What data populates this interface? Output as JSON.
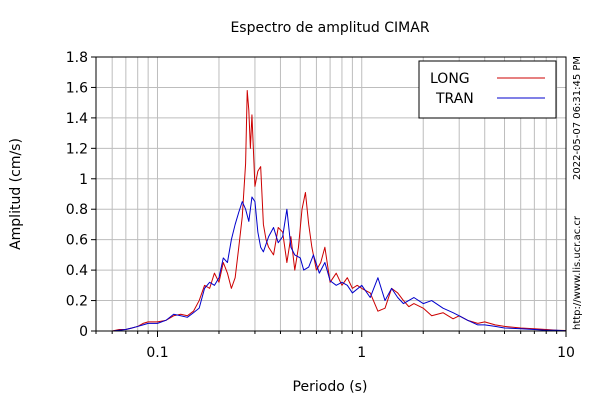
{
  "chart_data": {
    "type": "line",
    "title": "Espectro de amplitud CIMAR",
    "xlabel": "Periodo (s)",
    "ylabel": "Amplitud (cm/s)",
    "xscale": "log",
    "xlim": [
      0.05,
      10
    ],
    "ylim": [
      0,
      1.8
    ],
    "x_ticks": [
      {
        "value": 0.1,
        "label": "0.1"
      },
      {
        "value": 1,
        "label": "1"
      },
      {
        "value": 10,
        "label": "10"
      }
    ],
    "y_ticks": [
      {
        "value": 0,
        "label": "0"
      },
      {
        "value": 0.2,
        "label": "0.2"
      },
      {
        "value": 0.4,
        "label": "0.4"
      },
      {
        "value": 0.6,
        "label": "0.6"
      },
      {
        "value": 0.8,
        "label": "0.8"
      },
      {
        "value": 1,
        "label": "1"
      },
      {
        "value": 1.2,
        "label": "1.2"
      },
      {
        "value": 1.4,
        "label": "1.4"
      },
      {
        "value": 1.6,
        "label": "1.6"
      },
      {
        "value": 1.8,
        "label": "1.8"
      }
    ],
    "grid": true,
    "legend_position": "top-right",
    "side_texts": [
      "2022-05-07 06:31:45 PM",
      "http://www.lis.ucr.ac.cr"
    ],
    "series": [
      {
        "name": "LONG",
        "color": "#cc0000",
        "points": [
          [
            0.06,
            0.0
          ],
          [
            0.065,
            0.01
          ],
          [
            0.07,
            0.01
          ],
          [
            0.075,
            0.02
          ],
          [
            0.08,
            0.03
          ],
          [
            0.085,
            0.05
          ],
          [
            0.09,
            0.06
          ],
          [
            0.1,
            0.06
          ],
          [
            0.11,
            0.07
          ],
          [
            0.12,
            0.1
          ],
          [
            0.13,
            0.11
          ],
          [
            0.14,
            0.1
          ],
          [
            0.15,
            0.13
          ],
          [
            0.16,
            0.2
          ],
          [
            0.17,
            0.3
          ],
          [
            0.18,
            0.28
          ],
          [
            0.19,
            0.38
          ],
          [
            0.2,
            0.32
          ],
          [
            0.21,
            0.45
          ],
          [
            0.22,
            0.38
          ],
          [
            0.23,
            0.28
          ],
          [
            0.24,
            0.35
          ],
          [
            0.25,
            0.55
          ],
          [
            0.26,
            0.75
          ],
          [
            0.27,
            1.1
          ],
          [
            0.275,
            1.58
          ],
          [
            0.28,
            1.45
          ],
          [
            0.285,
            1.2
          ],
          [
            0.29,
            1.42
          ],
          [
            0.3,
            0.95
          ],
          [
            0.31,
            1.05
          ],
          [
            0.32,
            1.08
          ],
          [
            0.33,
            0.7
          ],
          [
            0.34,
            0.6
          ],
          [
            0.35,
            0.55
          ],
          [
            0.37,
            0.5
          ],
          [
            0.39,
            0.68
          ],
          [
            0.41,
            0.65
          ],
          [
            0.43,
            0.45
          ],
          [
            0.45,
            0.62
          ],
          [
            0.47,
            0.4
          ],
          [
            0.49,
            0.55
          ],
          [
            0.51,
            0.8
          ],
          [
            0.53,
            0.91
          ],
          [
            0.55,
            0.7
          ],
          [
            0.57,
            0.55
          ],
          [
            0.6,
            0.4
          ],
          [
            0.63,
            0.45
          ],
          [
            0.66,
            0.55
          ],
          [
            0.7,
            0.32
          ],
          [
            0.75,
            0.38
          ],
          [
            0.8,
            0.3
          ],
          [
            0.85,
            0.35
          ],
          [
            0.9,
            0.28
          ],
          [
            0.95,
            0.3
          ],
          [
            1.0,
            0.28
          ],
          [
            1.1,
            0.25
          ],
          [
            1.2,
            0.13
          ],
          [
            1.3,
            0.15
          ],
          [
            1.4,
            0.28
          ],
          [
            1.5,
            0.25
          ],
          [
            1.6,
            0.2
          ],
          [
            1.7,
            0.16
          ],
          [
            1.8,
            0.18
          ],
          [
            2.0,
            0.15
          ],
          [
            2.2,
            0.1
          ],
          [
            2.5,
            0.12
          ],
          [
            2.8,
            0.08
          ],
          [
            3.0,
            0.1
          ],
          [
            3.3,
            0.07
          ],
          [
            3.7,
            0.05
          ],
          [
            4.0,
            0.06
          ],
          [
            4.5,
            0.04
          ],
          [
            5.0,
            0.03
          ],
          [
            6.0,
            0.02
          ],
          [
            7.0,
            0.015
          ],
          [
            8.0,
            0.01
          ],
          [
            9.0,
            0.005
          ],
          [
            10.0,
            0.003
          ]
        ]
      },
      {
        "name": "TRAN",
        "color": "#0000cc",
        "points": [
          [
            0.06,
            0.0
          ],
          [
            0.065,
            0.005
          ],
          [
            0.07,
            0.01
          ],
          [
            0.075,
            0.02
          ],
          [
            0.08,
            0.03
          ],
          [
            0.085,
            0.04
          ],
          [
            0.09,
            0.05
          ],
          [
            0.1,
            0.05
          ],
          [
            0.11,
            0.07
          ],
          [
            0.12,
            0.11
          ],
          [
            0.13,
            0.1
          ],
          [
            0.14,
            0.09
          ],
          [
            0.15,
            0.12
          ],
          [
            0.16,
            0.15
          ],
          [
            0.17,
            0.28
          ],
          [
            0.18,
            0.32
          ],
          [
            0.19,
            0.3
          ],
          [
            0.2,
            0.35
          ],
          [
            0.21,
            0.48
          ],
          [
            0.22,
            0.45
          ],
          [
            0.23,
            0.6
          ],
          [
            0.24,
            0.7
          ],
          [
            0.25,
            0.78
          ],
          [
            0.26,
            0.85
          ],
          [
            0.27,
            0.8
          ],
          [
            0.28,
            0.72
          ],
          [
            0.29,
            0.88
          ],
          [
            0.3,
            0.85
          ],
          [
            0.31,
            0.65
          ],
          [
            0.32,
            0.55
          ],
          [
            0.33,
            0.52
          ],
          [
            0.35,
            0.62
          ],
          [
            0.37,
            0.68
          ],
          [
            0.39,
            0.58
          ],
          [
            0.41,
            0.62
          ],
          [
            0.43,
            0.8
          ],
          [
            0.45,
            0.55
          ],
          [
            0.47,
            0.5
          ],
          [
            0.5,
            0.48
          ],
          [
            0.52,
            0.4
          ],
          [
            0.55,
            0.42
          ],
          [
            0.58,
            0.5
          ],
          [
            0.62,
            0.38
          ],
          [
            0.66,
            0.45
          ],
          [
            0.7,
            0.33
          ],
          [
            0.75,
            0.3
          ],
          [
            0.8,
            0.32
          ],
          [
            0.85,
            0.3
          ],
          [
            0.9,
            0.25
          ],
          [
            1.0,
            0.3
          ],
          [
            1.1,
            0.22
          ],
          [
            1.2,
            0.35
          ],
          [
            1.3,
            0.2
          ],
          [
            1.4,
            0.28
          ],
          [
            1.5,
            0.22
          ],
          [
            1.6,
            0.18
          ],
          [
            1.8,
            0.22
          ],
          [
            2.0,
            0.18
          ],
          [
            2.2,
            0.2
          ],
          [
            2.5,
            0.15
          ],
          [
            2.8,
            0.12
          ],
          [
            3.0,
            0.1
          ],
          [
            3.3,
            0.07
          ],
          [
            3.7,
            0.04
          ],
          [
            4.0,
            0.04
          ],
          [
            4.5,
            0.03
          ],
          [
            5.0,
            0.02
          ],
          [
            6.0,
            0.015
          ],
          [
            7.0,
            0.01
          ],
          [
            8.0,
            0.005
          ],
          [
            9.0,
            0.005
          ],
          [
            10.0,
            0.002
          ]
        ]
      }
    ]
  }
}
